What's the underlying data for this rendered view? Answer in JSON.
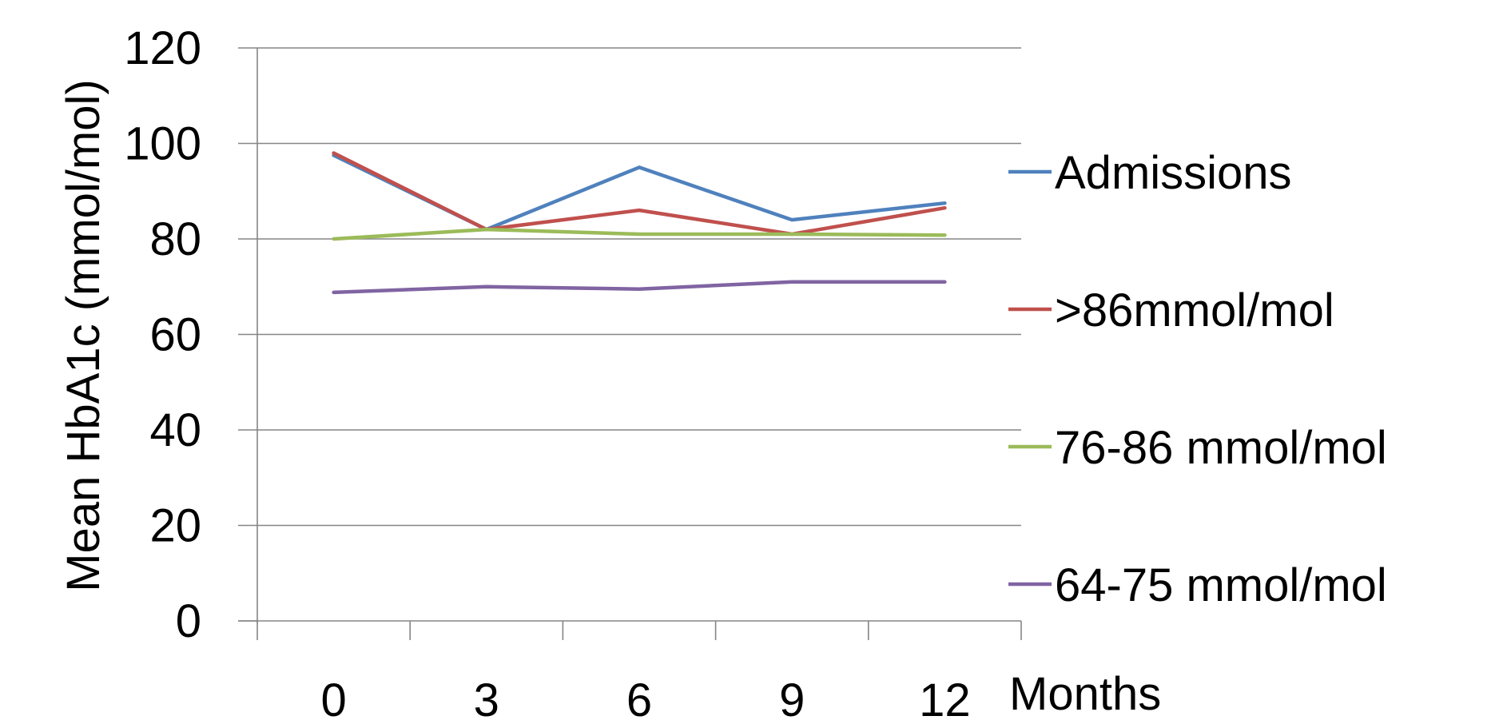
{
  "chart_data": {
    "type": "line",
    "categories": [
      "0",
      "3",
      "6",
      "9",
      "12"
    ],
    "series": [
      {
        "name": "Admissions",
        "color": "#4F81BD",
        "values": [
          97.5,
          82,
          95,
          84,
          87.5
        ]
      },
      {
        "name": ">86mmol/mol",
        "color": "#C0504D",
        "values": [
          98,
          82,
          86,
          81,
          86.5
        ]
      },
      {
        "name": "76-86 mmol/mol",
        "color": "#9BBB59",
        "values": [
          80,
          82,
          81,
          81,
          80.8
        ]
      },
      {
        "name": "64-75 mmol/mol",
        "color": "#8064A2",
        "values": [
          68.8,
          70,
          69.5,
          71,
          71
        ]
      }
    ],
    "xlabel": "Months",
    "ylabel": "Mean HbA1c (mmol/mol)",
    "ylim": [
      0,
      120
    ],
    "yticks": [
      "0",
      "20",
      "40",
      "60",
      "80",
      "100",
      "120"
    ],
    "grid": true,
    "legend_position": "right"
  }
}
